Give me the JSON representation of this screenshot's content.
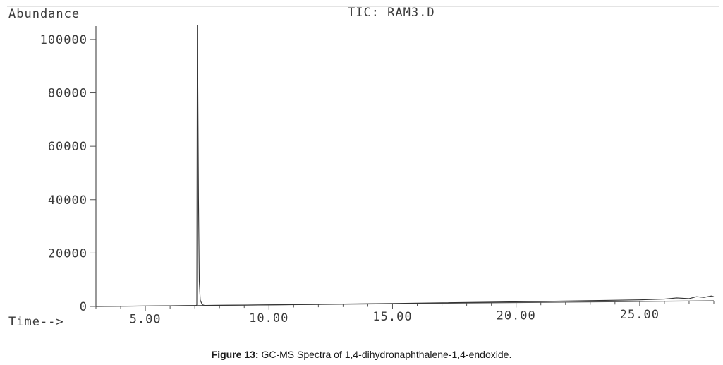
{
  "chart_data": {
    "type": "line",
    "title": "TIC: RAM3.D",
    "ylabel": "Abundance",
    "xlabel": "Time-->",
    "xlim": [
      3.0,
      28.0
    ],
    "ylim": [
      0,
      105000
    ],
    "x_ticks": [
      5.0,
      10.0,
      15.0,
      20.0,
      25.0
    ],
    "x_tick_labels": [
      "5.00",
      "10.00",
      "15.00",
      "20.00",
      "25.00"
    ],
    "y_ticks": [
      0,
      20000,
      40000,
      60000,
      80000,
      100000
    ],
    "y_tick_labels": [
      "0",
      "20000",
      "40000",
      "60000",
      "80000",
      "100000"
    ],
    "grid": false,
    "series": [
      {
        "x": [
          3.0,
          7.05,
          7.08,
          7.1,
          7.12,
          7.15,
          7.18,
          7.22,
          7.3,
          7.4,
          10.0,
          15.0,
          20.0,
          25.0,
          26.0,
          26.5,
          27.0,
          27.3,
          27.6,
          27.9,
          28.0
        ],
        "y": [
          0,
          0,
          200,
          105000,
          85000,
          40000,
          9000,
          2000,
          300,
          0,
          0,
          100,
          300,
          600,
          800,
          1200,
          900,
          1600,
          1300,
          1800,
          1500
        ]
      }
    ]
  },
  "caption": {
    "label": "Figure 13:",
    "text": "GC-MS Spectra of 1,4-dihydronaphthalene-1,4-endoxide."
  }
}
